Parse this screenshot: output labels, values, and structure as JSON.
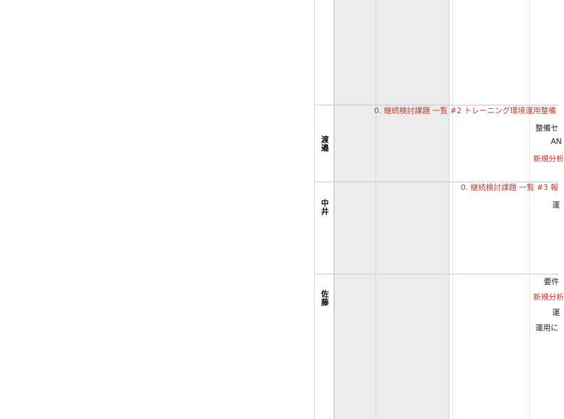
{
  "rows": [
    {
      "name": "渡邉",
      "items": [
        {
          "text": "0. 継続検討課題 一覧  #2 トレーニング環境運用整備",
          "color": "red"
        },
        {
          "text": "整備セ",
          "color": "black"
        },
        {
          "text": "AN",
          "color": "black"
        },
        {
          "text": "新規分析",
          "color": "red"
        }
      ]
    },
    {
      "name": "中井",
      "items": [
        {
          "text": "0. 継続検討課題 一覧  #3  報",
          "color": "red"
        },
        {
          "text": "運",
          "color": "black"
        }
      ]
    },
    {
      "name": "佐藤",
      "items": [
        {
          "text": "要件",
          "color": "black"
        },
        {
          "text": "新規分析",
          "color": "red"
        },
        {
          "text": "運",
          "color": "black"
        },
        {
          "text": "運用に",
          "color": "black"
        }
      ]
    }
  ],
  "colors": {
    "accent_red": "#c0392b",
    "shade": "#ececec",
    "grid": "#d6d6d6"
  }
}
